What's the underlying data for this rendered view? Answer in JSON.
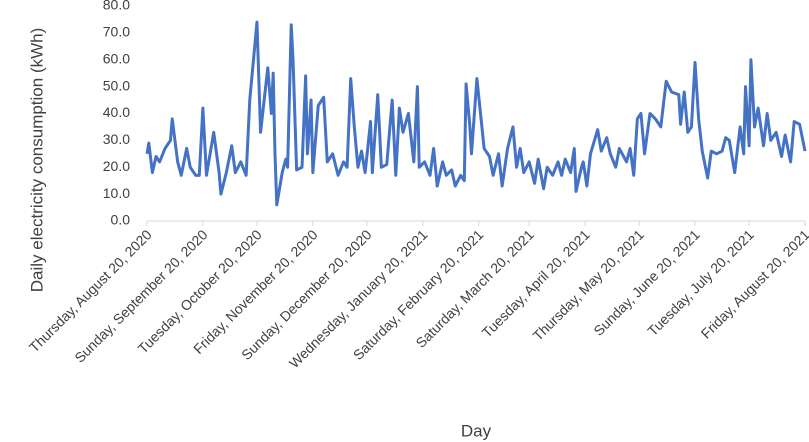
{
  "chart_data": {
    "type": "line",
    "x_label": "Day",
    "y_label": "Daily electricity consumption (kWh)",
    "color": "#4472c4",
    "grid": false,
    "xlim": [
      0,
      365
    ],
    "xticks": [
      {
        "value": 0,
        "label": "Thursday, August 20, 2020"
      },
      {
        "value": 31,
        "label": "Sunday, September 20, 2020"
      },
      {
        "value": 61,
        "label": "Tuesday, October 20, 2020"
      },
      {
        "value": 92,
        "label": "Friday, November 20, 2020"
      },
      {
        "value": 122,
        "label": "Sunday, December 20, 2020"
      },
      {
        "value": 153,
        "label": "Wednesday, January 20, 2021"
      },
      {
        "value": 184,
        "label": "Saturday, February 20, 2021"
      },
      {
        "value": 212,
        "label": "Saturday, March 20, 2021"
      },
      {
        "value": 243,
        "label": "Tuesday, April 20, 2021"
      },
      {
        "value": 273,
        "label": "Thursday, May 20, 2021"
      },
      {
        "value": 304,
        "label": "Sunday, June 20, 2021"
      },
      {
        "value": 334,
        "label": "Tuesday, July 20, 2021"
      },
      {
        "value": 365,
        "label": "Friday, August 20, 2021"
      }
    ],
    "ylim": [
      0,
      80
    ],
    "yticks": [
      {
        "value": 0,
        "label": "0.0"
      },
      {
        "value": 10,
        "label": "10.0"
      },
      {
        "value": 20,
        "label": "20.0"
      },
      {
        "value": 30,
        "label": "30.0"
      },
      {
        "value": 40,
        "label": "40.0"
      },
      {
        "value": 50,
        "label": "50.0"
      },
      {
        "value": 60,
        "label": "60.0"
      },
      {
        "value": 70,
        "label": "70.0"
      },
      {
        "value": 80,
        "label": "80.0"
      }
    ],
    "x": [
      0,
      1,
      3,
      5,
      7,
      10,
      13,
      14,
      17,
      19,
      22,
      24,
      27,
      29,
      31,
      33,
      37,
      38,
      40,
      41,
      44,
      47,
      49,
      52,
      55,
      57,
      61,
      63,
      65,
      67,
      69,
      70,
      71,
      72,
      75,
      77,
      78,
      80,
      81,
      83,
      86,
      88,
      89,
      91,
      92,
      95,
      98,
      100,
      103,
      106,
      109,
      111,
      113,
      115,
      117,
      119,
      121,
      124,
      125,
      128,
      130,
      133,
      136,
      138,
      140,
      142,
      145,
      148,
      150,
      151,
      154,
      157,
      159,
      161,
      164,
      166,
      169,
      171,
      174,
      176,
      177,
      179,
      180,
      183,
      185,
      187,
      190,
      192,
      195,
      197,
      200,
      203,
      205,
      207,
      209,
      212,
      215,
      217,
      220,
      222,
      225,
      228,
      230,
      232,
      235,
      237,
      238,
      241,
      242,
      244,
      246,
      250,
      252,
      255,
      257,
      260,
      262,
      266,
      268,
      270,
      272,
      274,
      276,
      279,
      282,
      285,
      288,
      291,
      295,
      296,
      298,
      300,
      302,
      304,
      306,
      308,
      311,
      313,
      316,
      319,
      321,
      323,
      326,
      329,
      331,
      332,
      334,
      335,
      337,
      339,
      342,
      344,
      346,
      349,
      352,
      354,
      357,
      359,
      362,
      365
    ],
    "values": [
      25,
      29,
      18,
      24,
      22,
      27,
      30,
      38,
      22,
      17,
      27,
      20,
      17,
      17,
      42,
      17,
      33,
      28,
      18,
      10,
      18,
      28,
      18,
      22,
      17,
      45,
      74,
      33,
      45,
      57,
      40,
      55,
      25,
      6,
      18,
      23,
      20,
      73,
      60,
      19,
      20,
      54,
      25,
      45,
      18,
      43,
      46,
      22,
      25,
      17,
      22,
      20,
      53,
      35,
      20,
      26,
      18,
      37,
      18,
      47,
      20,
      21,
      45,
      17,
      42,
      33,
      40,
      22,
      50,
      20,
      22,
      17,
      27,
      13,
      22,
      17,
      19,
      13,
      17,
      15,
      51,
      36,
      25,
      53,
      40,
      27,
      24,
      17,
      25,
      13,
      27,
      35,
      20,
      27,
      18,
      22,
      14,
      23,
      12,
      20,
      17,
      22,
      17,
      23,
      18,
      27,
      11,
      20,
      22,
      13,
      25,
      34,
      26,
      31,
      25,
      20,
      27,
      22,
      27,
      17,
      38,
      40,
      25,
      40,
      38,
      35,
      52,
      48,
      47,
      36,
      48,
      33,
      35,
      59,
      38,
      26,
      16,
      26,
      25,
      26,
      31,
      30,
      18,
      35,
      25,
      50,
      28,
      60,
      35,
      42,
      28,
      40,
      30,
      33,
      24,
      32,
      22,
      37,
      36,
      26
    ]
  }
}
